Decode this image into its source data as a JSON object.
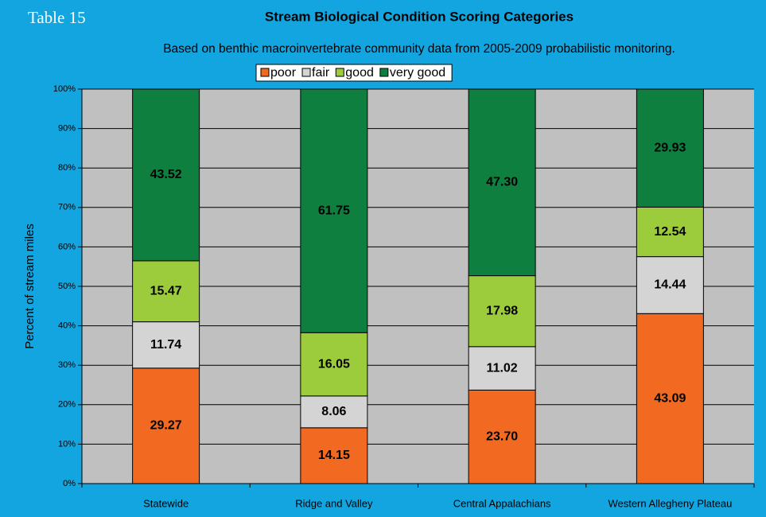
{
  "chart_data": {
    "type": "stacked_bar",
    "table_label": "Table 15",
    "title": "Stream Biological Condition Scoring Categories",
    "subtitle": "Based on benthic macroinvertebrate community data from 2005-2009 probabilistic monitoring.",
    "ylabel": "Percent of stream miles",
    "categories": [
      "Statewide",
      "Ridge and Valley",
      "Central Appalachians",
      "Western Allegheny Plateau"
    ],
    "series": [
      {
        "name": "poor",
        "color": "#f26a22",
        "values": [
          29.27,
          14.15,
          23.7,
          43.09
        ],
        "value_labels": [
          "29.27",
          "14.15",
          "23.70",
          "43.09"
        ]
      },
      {
        "name": "fair",
        "color": "#d4d4d4",
        "values": [
          11.74,
          8.06,
          11.02,
          14.44
        ],
        "value_labels": [
          "11.74",
          "8.06",
          "11.02",
          "14.44"
        ]
      },
      {
        "name": "good",
        "color": "#9ccc3c",
        "values": [
          15.47,
          16.05,
          17.98,
          12.54
        ],
        "value_labels": [
          "15.47",
          "16.05",
          "17.98",
          "12.54"
        ]
      },
      {
        "name": "very good",
        "color": "#0f7f3f",
        "values": [
          43.52,
          61.75,
          47.3,
          29.93
        ],
        "value_labels": [
          "43.52",
          "61.75",
          "47.30",
          "29.93"
        ]
      }
    ],
    "ylim": [
      0,
      100
    ],
    "yticks": [
      {
        "value": 0,
        "label": "0%"
      },
      {
        "value": 10,
        "label": "10%"
      },
      {
        "value": 20,
        "label": "20%"
      },
      {
        "value": 30,
        "label": "30%"
      },
      {
        "value": 40,
        "label": "40%"
      },
      {
        "value": 50,
        "label": "50%"
      },
      {
        "value": 60,
        "label": "60%"
      },
      {
        "value": 70,
        "label": "70%"
      },
      {
        "value": 80,
        "label": "80%"
      },
      {
        "value": 90,
        "label": "90%"
      },
      {
        "value": 100,
        "label": "100%"
      }
    ],
    "grid": true,
    "legend": "top"
  }
}
